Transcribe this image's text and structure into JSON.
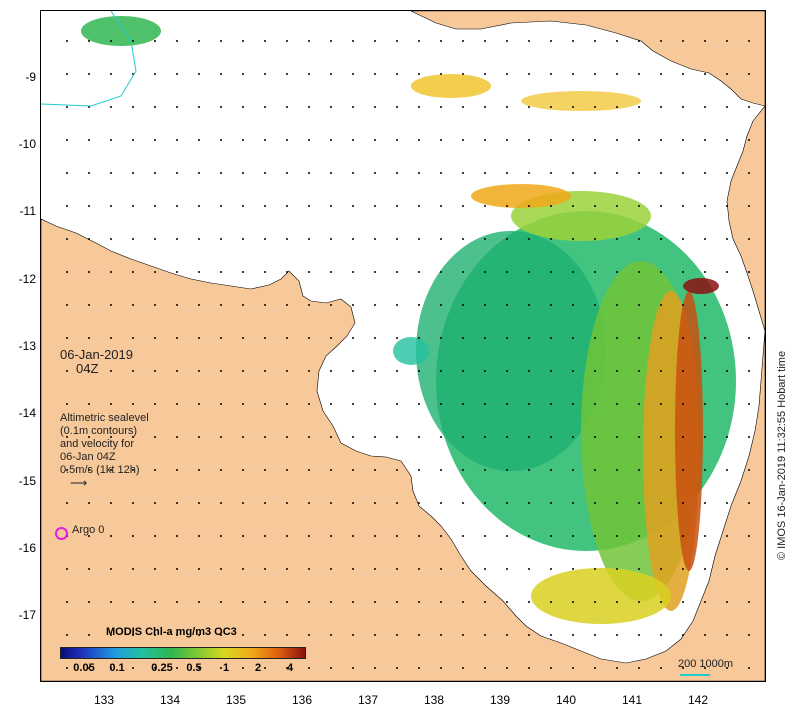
{
  "map": {
    "date_line1": "06-Jan-2019",
    "date_line2": "04Z",
    "legend_lines": [
      "Altimetric sealevel",
      "(0.1m contours)",
      "and velocity for",
      "06-Jan 04Z",
      "0.5m/s (1kt 12h)"
    ],
    "argo_label": "Argo 0",
    "colorbar_title": "MODIS Chl-a mg/m3 OC3",
    "colorbar_ticks": [
      "0.05",
      "0.1",
      "0.25",
      "0.5",
      "1",
      "2",
      "4"
    ],
    "scale_label": "200  1000m",
    "credit": "© IMOS 16-Jan-2019 11:32:55 Hobart time",
    "lat_ticks": [
      "-9",
      "-10",
      "-11",
      "-12",
      "-13",
      "-14",
      "-15",
      "-16",
      "-17"
    ],
    "lon_ticks": [
      "133",
      "134",
      "135",
      "136",
      "137",
      "138",
      "139",
      "140",
      "141",
      "142"
    ],
    "colors": {
      "land": "#f7c89a",
      "sea": "#ffffff",
      "chl_low": "#1fb070",
      "chl_mid": "#9ad23a",
      "chl_high": "#e07a10",
      "chl_max": "#8a1010",
      "argo": "#e020e0"
    }
  }
}
